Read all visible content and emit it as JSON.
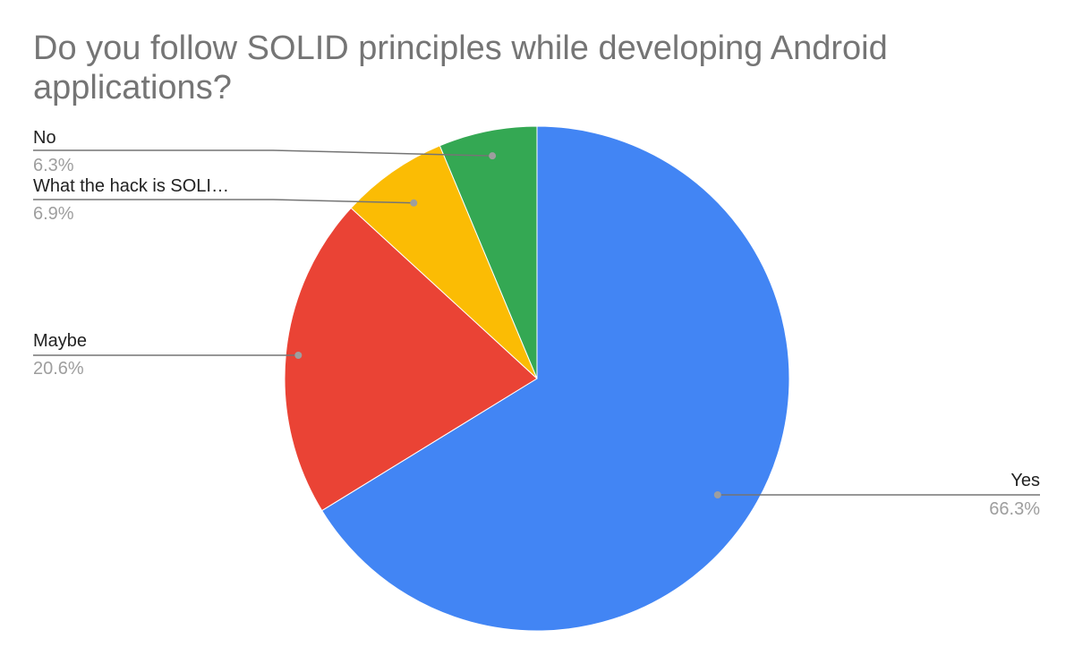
{
  "chart_data": {
    "type": "pie",
    "title": "Do you follow SOLID principles while developing Android applications?",
    "slices": [
      {
        "label": "Yes",
        "value": 66.3,
        "display": "66.3%",
        "color": "#4285f4"
      },
      {
        "label": "Maybe",
        "value": 20.6,
        "display": "20.6%",
        "color": "#ea4335"
      },
      {
        "label": "What the hack is SOLI…",
        "value": 6.9,
        "display": "6.9%",
        "color": "#fbbc04"
      },
      {
        "label": "No",
        "value": 6.3,
        "display": "6.3%",
        "color": "#34a853"
      }
    ],
    "start_angle": "12 o'clock",
    "direction": "clockwise",
    "legend": "labels beside slices"
  }
}
